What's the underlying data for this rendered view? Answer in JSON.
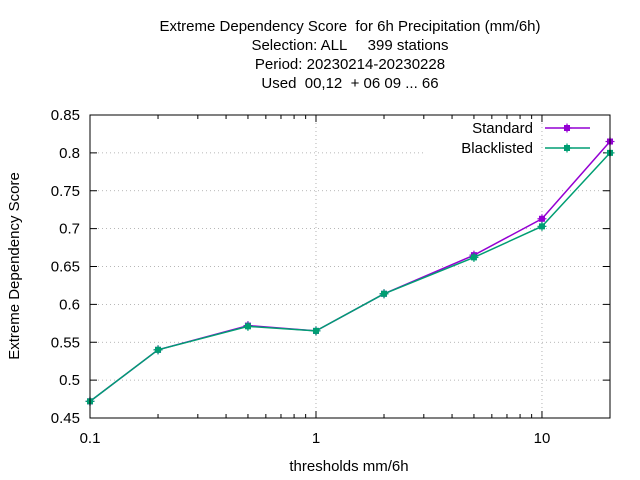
{
  "title_lines": [
    "Extreme Dependency Score  for 6h Precipitation (mm/6h)",
    "Selection: ALL     399 stations",
    "Period: 20230214-20230228",
    "Used  00,12  + 06 09 ... 66"
  ],
  "chart_data": {
    "type": "line",
    "xlabel": "thresholds mm/6h",
    "ylabel": "Extreme Dependency Score",
    "x_scale": "log",
    "xlim": [
      0.1,
      20
    ],
    "ylim": [
      0.45,
      0.85
    ],
    "x_tick_labels": [
      "0.1",
      "1",
      "10"
    ],
    "y_tick_labels": [
      "0.45",
      "0.5",
      "0.55",
      "0.6",
      "0.65",
      "0.7",
      "0.75",
      "0.8",
      "0.85"
    ],
    "grid": true,
    "legend_position": "top-right",
    "x": [
      0.1,
      0.2,
      0.5,
      1,
      2,
      5,
      10,
      20
    ],
    "series": [
      {
        "name": "Standard",
        "color": "#9400d3",
        "marker": "filled-square-plus",
        "values": [
          0.472,
          0.54,
          0.572,
          0.565,
          0.614,
          0.665,
          0.713,
          0.815
        ]
      },
      {
        "name": "Blacklisted",
        "color": "#009e73",
        "marker": "filled-square-plus",
        "values": [
          0.472,
          0.54,
          0.571,
          0.565,
          0.614,
          0.662,
          0.703,
          0.8
        ]
      }
    ]
  }
}
